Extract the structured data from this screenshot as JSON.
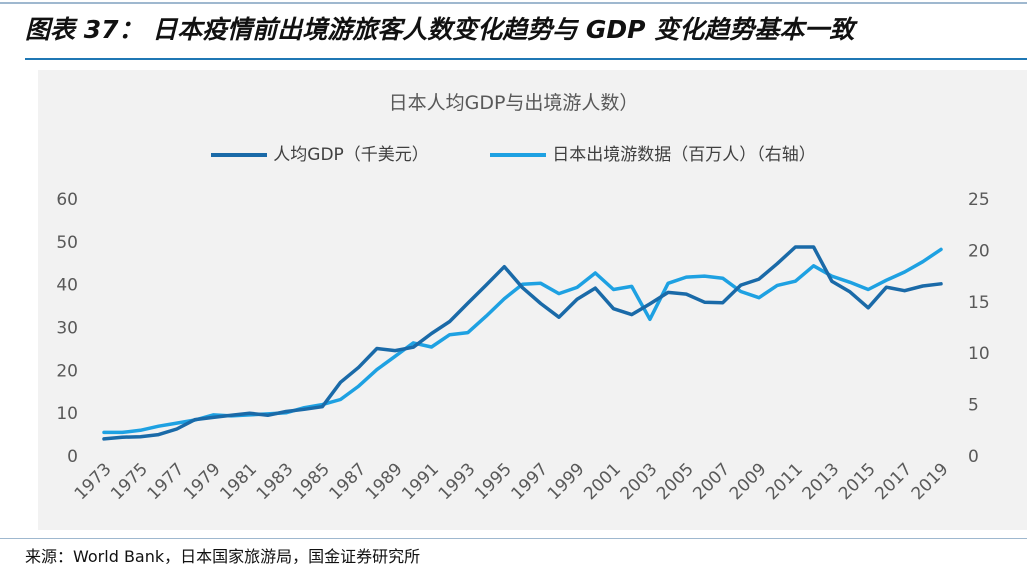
{
  "figure_title": "图表 37： 日本疫情前出境游旅客人数变化趋势与 GDP 变化趋势基本一致",
  "source": "来源：World Bank，日本国家旅游局，国金证券研究所",
  "colors": {
    "gdp": "#1a6aa8",
    "travelers": "#1ea1e2",
    "accent_rule": "#1f77b4",
    "panel": "#f2f2f2"
  },
  "chart_data": {
    "type": "line",
    "title": "日本人均GDP与出境游人数）",
    "legend_position": "top",
    "x": [
      1973,
      1974,
      1975,
      1976,
      1977,
      1978,
      1979,
      1980,
      1981,
      1982,
      1983,
      1984,
      1985,
      1986,
      1987,
      1988,
      1989,
      1990,
      1991,
      1992,
      1993,
      1994,
      1995,
      1996,
      1997,
      1998,
      1999,
      2000,
      2001,
      2002,
      2003,
      2004,
      2005,
      2006,
      2007,
      2008,
      2009,
      2010,
      2011,
      2012,
      2013,
      2014,
      2015,
      2016,
      2017,
      2018,
      2019
    ],
    "x_tick_labels": [
      "1973",
      "1975",
      "1977",
      "1979",
      "1981",
      "1983",
      "1985",
      "1987",
      "1989",
      "1991",
      "1993",
      "1995",
      "1997",
      "1999",
      "2001",
      "2003",
      "2005",
      "2007",
      "2009",
      "2011",
      "2013",
      "2015",
      "2017",
      "2019"
    ],
    "y_left": {
      "range": [
        0,
        60
      ],
      "ticks": [
        "0",
        "10",
        "20",
        "30",
        "40",
        "50",
        "60"
      ]
    },
    "y_right": {
      "range": [
        0,
        25
      ],
      "ticks": [
        "0",
        "5",
        "10",
        "15",
        "20",
        "25"
      ]
    },
    "grid": false,
    "series": [
      {
        "name": "人均GDP（千美元）",
        "axis": "left",
        "values": [
          4.0,
          4.4,
          4.5,
          5.0,
          6.3,
          8.5,
          9.0,
          9.5,
          10.0,
          9.5,
          10.4,
          10.9,
          11.5,
          17.2,
          20.7,
          25.1,
          24.6,
          25.4,
          28.6,
          31.4,
          35.7,
          39.9,
          44.2,
          39.3,
          35.6,
          32.4,
          36.6,
          39.2,
          34.4,
          33.0,
          35.5,
          38.2,
          37.8,
          35.9,
          35.8,
          39.9,
          41.3,
          44.9,
          48.8,
          48.8,
          40.8,
          38.3,
          34.6,
          39.4,
          38.6,
          39.7,
          40.2
        ]
      },
      {
        "name": "日本出境游数据（百万人）（右轴）",
        "axis": "right",
        "values": [
          2.3,
          2.3,
          2.5,
          2.9,
          3.2,
          3.5,
          4.0,
          3.9,
          4.0,
          4.1,
          4.2,
          4.7,
          5.0,
          5.5,
          6.8,
          8.4,
          9.7,
          11.0,
          10.6,
          11.8,
          12.0,
          13.6,
          15.3,
          16.7,
          16.8,
          15.8,
          16.4,
          17.8,
          16.2,
          16.5,
          13.3,
          16.8,
          17.4,
          17.5,
          17.3,
          16.0,
          15.4,
          16.6,
          17.0,
          18.5,
          17.5,
          16.9,
          16.2,
          17.1,
          17.9,
          18.9,
          20.1
        ]
      }
    ]
  }
}
